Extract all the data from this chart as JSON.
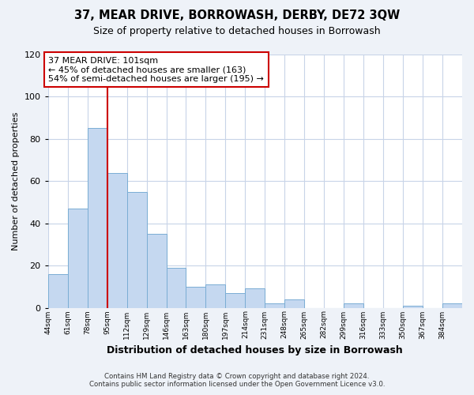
{
  "title": "37, MEAR DRIVE, BORROWASH, DERBY, DE72 3QW",
  "subtitle": "Size of property relative to detached houses in Borrowash",
  "xlabel": "Distribution of detached houses by size in Borrowash",
  "ylabel": "Number of detached properties",
  "bar_color": "#c5d8f0",
  "bar_edge_color": "#7aadd4",
  "bin_edges": [
    44,
    61,
    78,
    95,
    112,
    129,
    146,
    163,
    180,
    197,
    214,
    231,
    248,
    265,
    282,
    299,
    316,
    333,
    350,
    367,
    384
  ],
  "bin_labels": [
    "44sqm",
    "61sqm",
    "78sqm",
    "95sqm",
    "112sqm",
    "129sqm",
    "146sqm",
    "163sqm",
    "180sqm",
    "197sqm",
    "214sqm",
    "231sqm",
    "248sqm",
    "265sqm",
    "282sqm",
    "299sqm",
    "316sqm",
    "333sqm",
    "350sqm",
    "367sqm",
    "384sqm"
  ],
  "values": [
    16,
    47,
    85,
    64,
    55,
    35,
    19,
    10,
    11,
    7,
    9,
    2,
    4,
    0,
    0,
    2,
    0,
    0,
    1,
    0,
    2
  ],
  "ylim": [
    0,
    120
  ],
  "yticks": [
    0,
    20,
    40,
    60,
    80,
    100,
    120
  ],
  "property_line_x": 95,
  "property_line_color": "#cc0000",
  "annotation_line1": "37 MEAR DRIVE: 101sqm",
  "annotation_line2": "← 45% of detached houses are smaller (163)",
  "annotation_line3": "54% of semi-detached houses are larger (195) →",
  "footer_line1": "Contains HM Land Registry data © Crown copyright and database right 2024.",
  "footer_line2": "Contains public sector information licensed under the Open Government Licence v3.0.",
  "background_color": "#eef2f8",
  "plot_background": "#ffffff",
  "grid_color": "#c8d4e8"
}
